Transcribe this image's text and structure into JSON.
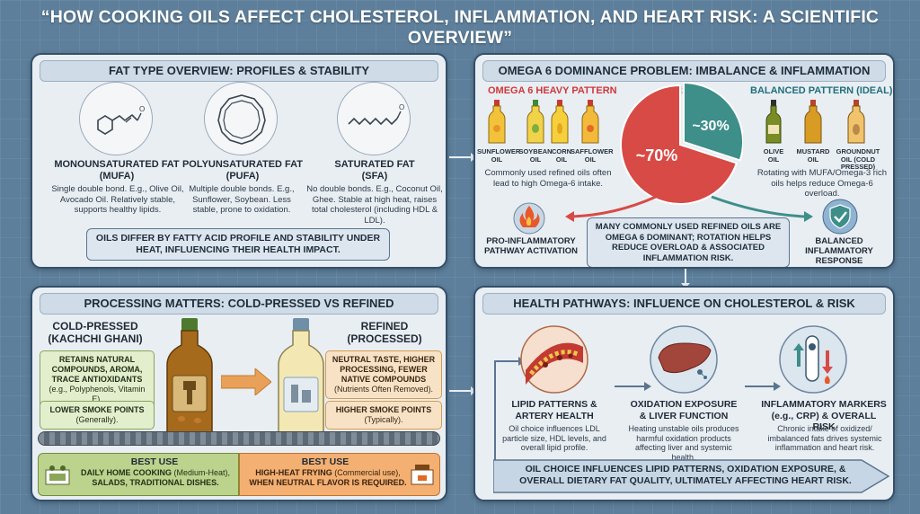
{
  "title": "“HOW COOKING OILS AFFECT CHOLESTEROL, INFLAMMATION, AND HEART RISK: A SCIENTIFIC OVERVIEW”",
  "fat_panel": {
    "heading": "FAT TYPE OVERVIEW: PROFILES & STABILITY",
    "types": [
      {
        "name": "MONOUNSATURATED FAT",
        "abbr": "(MUFA)",
        "desc": "Single double bond. E.g., Olive Oil, Avocado Oil. Relatively stable, supports healthy lipids."
      },
      {
        "name": "POLYUNSATURATED FAT",
        "abbr": "(PUFA)",
        "desc": "Multiple double bonds. E.g., Sunflower, Soybean. Less stable, prone to oxidation."
      },
      {
        "name": "SATURATED FAT",
        "abbr": "(SFA)",
        "desc": "No double bonds. E.g., Coconut Oil, Ghee. Stable at high heat, raises total cholesterol (including HDL & LDL)."
      }
    ],
    "callout": "OILS DIFFER BY FATTY ACID PROFILE AND STABILITY UNDER HEAT, INFLUENCING THEIR HEALTH IMPACT."
  },
  "omega_panel": {
    "heading": "OMEGA 6 DOMINANCE PROBLEM: IMBALANCE & INFLAMMATION RISK",
    "heavy_label": "OMEGA 6 HEAVY PATTERN",
    "balanced_label": "BALANCED PATTERN (IDEAL)",
    "heavy_oils": [
      "SUNFLOWER OIL",
      "SOYBEAN OIL",
      "CORN OIL",
      "SAFFLOWER OIL"
    ],
    "balanced_oils": [
      "OLIVE OIL",
      "MUSTARD OIL",
      "GROUNDNUT OIL (COLD PRESSED)"
    ],
    "heavy_note": "Commonly used refined oils often lead to high Omega-6 intake.",
    "balanced_note": "Rotating with MUFA/Omega-3 rich oils helps reduce Omega-6 overload.",
    "pie_major_label": "~70%",
    "pie_minor_label": "~30%",
    "pro_inflammatory": "PRO-INFLAMMATORY PATHWAY ACTIVATION",
    "balanced_response": "BALANCED INFLAMMATORY RESPONSE",
    "callout": "MANY COMMONLY USED REFINED OILS ARE OMEGA 6 DOMINANT; ROTATION HELPS REDUCE OVERLOAD & ASSOCIATED INFLAMMATION RISK.",
    "colors": {
      "heavy": "#d84a45",
      "balanced": "#3e8e8a"
    }
  },
  "chart_data": {
    "type": "pie",
    "slices": [
      {
        "label": "~70%",
        "value": 70
      },
      {
        "label": "~30%",
        "value": 30
      }
    ]
  },
  "processing_panel": {
    "heading": "PROCESSING MATTERS: COLD-PRESSED VS REFINED",
    "cold_title": "COLD-PRESSED (KACHCHI GHANI)",
    "cold_benefit_bold": "RETAINS NATURAL COMPOUNDS, AROMA, TRACE ANTIOXIDANTS",
    "cold_benefit_small": "(e.g., Polyphenols, Vitamin E).",
    "cold_smoke_bold": "LOWER SMOKE POINTS",
    "cold_smoke_small": "(Generally).",
    "refined_title": "REFINED (PROCESSED)",
    "refined_benefit_bold": "NEUTRAL TASTE, HIGHER PROCESSING, FEWER NATIVE COMPOUNDS",
    "refined_benefit_small": "(Nutrients Often Removed).",
    "refined_smoke_bold": "HIGHER SMOKE POINTS",
    "refined_smoke_small": "(Typically).",
    "best_use_label": "BEST USE",
    "cold_best_bold": "DAILY HOME COOKING",
    "cold_best_small": "(Medium-Heat),",
    "cold_best_bold2": "SALADS, TRADITIONAL DISHES.",
    "refined_best_bold": "HIGH-HEAT FRYING",
    "refined_best_small": "(Commercial use),",
    "refined_best_bold2": "WHEN NEUTRAL FLAVOR IS REQUIRED."
  },
  "health_panel": {
    "heading": "HEALTH PATHWAYS: INFLUENCE ON CHOLESTEROL & RISK",
    "items": [
      {
        "title": "LIPID PATTERNS & ARTERY HEALTH",
        "desc": "Oil choice influences LDL particle size, HDL levels, and overall lipid profile."
      },
      {
        "title": "OXIDATION EXPOSURE & LIVER FUNCTION",
        "desc": "Heating unstable oils produces harmful oxidation products affecting liver and systemic health."
      },
      {
        "title": "INFLAMMATORY MARKERS (e.g., CRP) & OVERALL RISK",
        "desc": "Chronic intake of oxidized/ imbalanced fats drives systemic inflammation and heart risk."
      }
    ],
    "banner": "OIL CHOICE INFLUENCES LIPID PATTERNS, OXIDATION EXPOSURE, & OVERALL DIETARY FAT QUALITY, ULTIMATELY AFFECTING HEART RISK."
  }
}
